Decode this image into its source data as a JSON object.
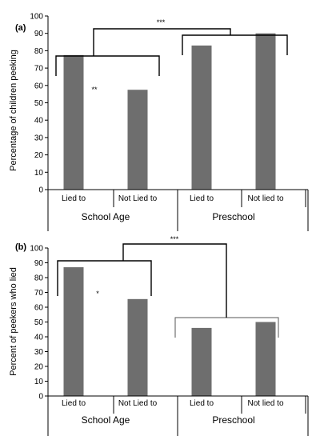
{
  "colors": {
    "bar": "#6e6e6e",
    "axis": "#000000",
    "bracket_b_inner": "#555555"
  },
  "chart_data": [
    {
      "type": "bar",
      "panel_label": "(a)",
      "ylabel": "Percentage of children peeking",
      "ylim": [
        0,
        100
      ],
      "yticks": [
        0,
        10,
        20,
        30,
        40,
        50,
        60,
        70,
        80,
        90,
        100
      ],
      "categories": [
        "Lied to",
        "Not Lied to",
        "Lied to",
        "Not lied to"
      ],
      "values": [
        77.5,
        57.5,
        83,
        90
      ],
      "groups": [
        {
          "label": "School Age",
          "categories": [
            0,
            1
          ]
        },
        {
          "label": "Preschool",
          "categories": [
            2,
            3
          ]
        }
      ],
      "annotations": [
        {
          "text": "**",
          "between": [
            0,
            1
          ],
          "level": "within-group"
        },
        {
          "text": "***",
          "between": [
            "School Age",
            "Preschool"
          ],
          "level": "between-groups"
        }
      ]
    },
    {
      "type": "bar",
      "panel_label": "(b)",
      "ylabel": "Percent of peekers who lied",
      "ylim": [
        0,
        100
      ],
      "yticks": [
        0,
        10,
        20,
        30,
        40,
        50,
        60,
        70,
        80,
        90,
        100
      ],
      "categories": [
        "Lied to",
        "Not Lied to",
        "Lied to",
        "Not lied to"
      ],
      "values": [
        87,
        65.5,
        46,
        50
      ],
      "groups": [
        {
          "label": "School Age",
          "categories": [
            0,
            1
          ]
        },
        {
          "label": "Preschool",
          "categories": [
            2,
            3
          ]
        }
      ],
      "annotations": [
        {
          "text": "*",
          "between": [
            0,
            1
          ],
          "level": "within-group"
        },
        {
          "text": "***",
          "between": [
            "School Age",
            "Preschool"
          ],
          "level": "between-groups"
        }
      ]
    }
  ]
}
